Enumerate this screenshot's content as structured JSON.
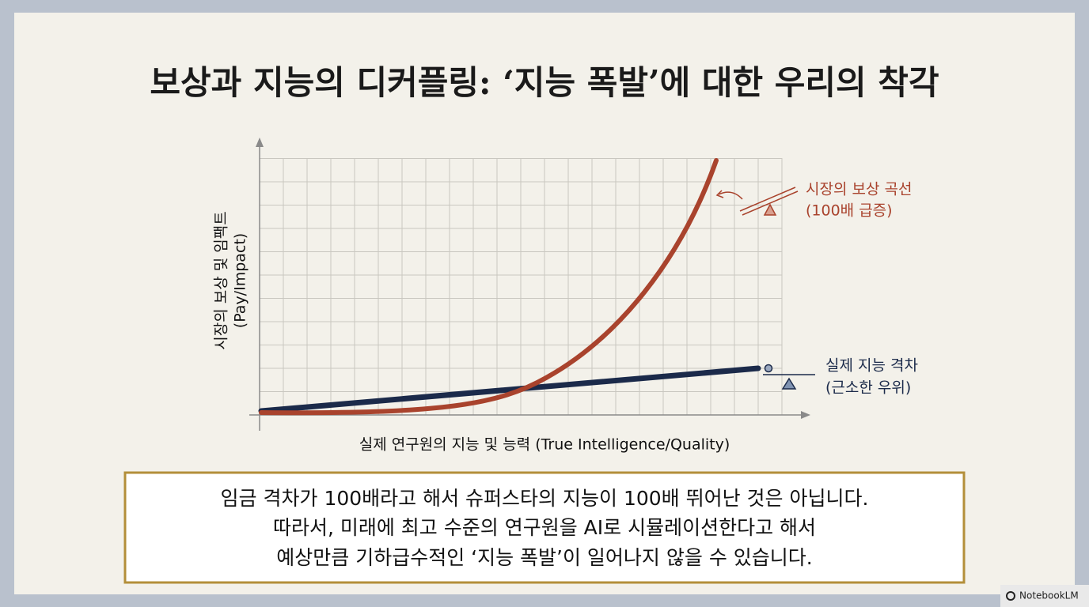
{
  "title": "보상과 지능의 디커플링: ‘지능 폭발’에 대한 우리의 착각",
  "chart": {
    "y_axis_label": [
      "시장의 보상 및 임팩트",
      "(Pay/Impact)"
    ],
    "x_axis_label": "실제 연구원의 지능 및 능력 (True Intelligence/Quality)",
    "annotations": [
      {
        "lines": [
          "시장의 보상 곡선",
          "(100배 급증)"
        ]
      },
      {
        "lines": [
          "실제 지능 격차",
          "(근소한 우위)"
        ]
      }
    ]
  },
  "callout": {
    "lines": [
      "임금 격차가 100배라고 해서 슈퍼스타의 지능이 100배 뛰어난 것은 아닙니다.",
      "따라서, 미래에 최고 수준의 연구원을 AI로 시뮬레이션한다고 해서",
      "예상만큼 기하급수적인 ‘지능 폭발’이 일어나지 않을 수 있습니다."
    ]
  },
  "watermark": "NotebookLM"
}
